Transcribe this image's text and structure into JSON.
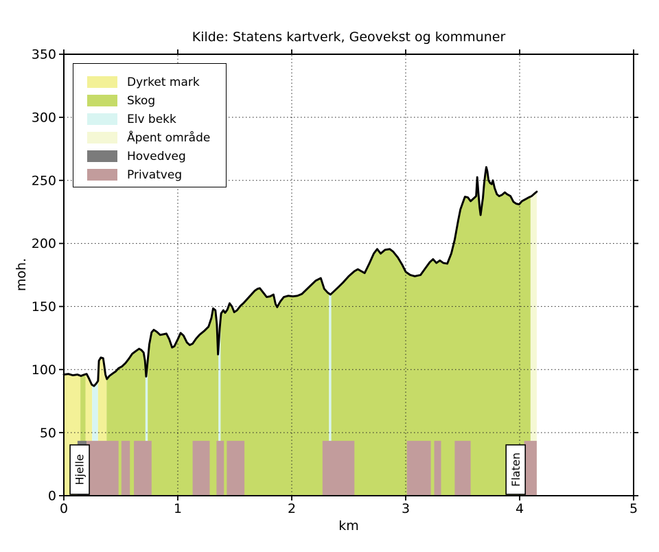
{
  "title": "Kilde: Statens kartverk, Geovekst og kommuner",
  "axes": {
    "x_label": "km",
    "y_label": "moh.",
    "x_ticks": [
      0,
      1,
      2,
      3,
      4,
      5
    ],
    "y_ticks": [
      0,
      50,
      100,
      150,
      200,
      250,
      300,
      350
    ]
  },
  "legend": {
    "items": [
      {
        "label": "Dyrket mark",
        "type": "dyrket_mark"
      },
      {
        "label": "Skog",
        "type": "skog"
      },
      {
        "label": "Elv bekk",
        "type": "elv_bekk"
      },
      {
        "label": "Åpent område",
        "type": "apent_omrade"
      },
      {
        "label": "Hovedveg",
        "type": "hovedveg"
      },
      {
        "label": "Privatveg",
        "type": "privatveg"
      }
    ]
  },
  "markers": [
    {
      "label": "Hjelle",
      "km": 0.139
    },
    {
      "label": "Flaten",
      "km": 3.965
    }
  ],
  "chart_data": {
    "type": "area",
    "title": "Kilde: Statens kartverk, Geovekst og kommuner",
    "xlabel": "km",
    "ylabel": "moh.",
    "xlim": [
      0,
      5
    ],
    "ylim": [
      0,
      350
    ],
    "grid": true,
    "legend_position": "upper left",
    "line_color": "#000000",
    "colors": {
      "dyrket_mark": "#f3f197",
      "skog": "#c6db68",
      "elv_bekk": "#d8f5f2",
      "apent_omrade": "#f5f8d5",
      "hovedveg": "#7b7b7b",
      "privatveg": "#c29c9c"
    },
    "profile": [
      [
        0.0,
        96
      ],
      [
        0.04,
        96.5
      ],
      [
        0.08,
        95.5
      ],
      [
        0.12,
        96
      ],
      [
        0.15,
        95
      ],
      [
        0.18,
        96
      ],
      [
        0.2,
        96.5
      ],
      [
        0.22,
        93
      ],
      [
        0.245,
        88
      ],
      [
        0.265,
        87
      ],
      [
        0.285,
        89
      ],
      [
        0.3,
        91
      ],
      [
        0.308,
        107
      ],
      [
        0.325,
        109.5
      ],
      [
        0.345,
        109
      ],
      [
        0.355,
        103
      ],
      [
        0.365,
        96
      ],
      [
        0.378,
        92.5
      ],
      [
        0.4,
        95
      ],
      [
        0.43,
        97
      ],
      [
        0.455,
        98.5
      ],
      [
        0.48,
        101
      ],
      [
        0.51,
        102.5
      ],
      [
        0.54,
        105
      ],
      [
        0.57,
        108.5
      ],
      [
        0.6,
        112.5
      ],
      [
        0.63,
        114.5
      ],
      [
        0.66,
        116.5
      ],
      [
        0.68,
        115.5
      ],
      [
        0.7,
        113.5
      ],
      [
        0.712,
        107
      ],
      [
        0.722,
        94.5
      ],
      [
        0.735,
        106
      ],
      [
        0.75,
        120
      ],
      [
        0.77,
        129.5
      ],
      [
        0.79,
        131.5
      ],
      [
        0.815,
        130
      ],
      [
        0.845,
        127.5
      ],
      [
        0.875,
        128
      ],
      [
        0.9,
        128.5
      ],
      [
        0.925,
        124
      ],
      [
        0.95,
        117.5
      ],
      [
        0.97,
        118.5
      ],
      [
        1.0,
        124
      ],
      [
        1.025,
        129
      ],
      [
        1.05,
        127
      ],
      [
        1.08,
        121.5
      ],
      [
        1.105,
        119.5
      ],
      [
        1.13,
        120.5
      ],
      [
        1.16,
        124.5
      ],
      [
        1.19,
        127.5
      ],
      [
        1.23,
        130.5
      ],
      [
        1.27,
        134
      ],
      [
        1.295,
        141
      ],
      [
        1.31,
        148.5
      ],
      [
        1.33,
        147
      ],
      [
        1.343,
        136
      ],
      [
        1.353,
        112
      ],
      [
        1.368,
        133
      ],
      [
        1.38,
        144.5
      ],
      [
        1.4,
        147
      ],
      [
        1.415,
        145
      ],
      [
        1.435,
        147.5
      ],
      [
        1.455,
        152.5
      ],
      [
        1.475,
        150
      ],
      [
        1.495,
        145.5
      ],
      [
        1.52,
        147
      ],
      [
        1.55,
        150.5
      ],
      [
        1.58,
        153
      ],
      [
        1.61,
        156
      ],
      [
        1.645,
        159.5
      ],
      [
        1.675,
        162.5
      ],
      [
        1.7,
        164
      ],
      [
        1.72,
        164.5
      ],
      [
        1.75,
        161
      ],
      [
        1.78,
        157.5
      ],
      [
        1.81,
        158
      ],
      [
        1.84,
        159.5
      ],
      [
        1.858,
        152
      ],
      [
        1.872,
        149.5
      ],
      [
        1.9,
        154
      ],
      [
        1.93,
        157.5
      ],
      [
        1.97,
        158.5
      ],
      [
        2.01,
        158
      ],
      [
        2.05,
        158.5
      ],
      [
        2.09,
        160
      ],
      [
        2.13,
        163.5
      ],
      [
        2.17,
        167
      ],
      [
        2.21,
        170.5
      ],
      [
        2.255,
        172.5
      ],
      [
        2.285,
        164
      ],
      [
        2.315,
        161
      ],
      [
        2.34,
        159.5
      ],
      [
        2.375,
        162.5
      ],
      [
        2.41,
        165.5
      ],
      [
        2.45,
        169
      ],
      [
        2.5,
        174
      ],
      [
        2.55,
        178
      ],
      [
        2.58,
        179.5
      ],
      [
        2.61,
        178
      ],
      [
        2.64,
        176.5
      ],
      [
        2.68,
        184
      ],
      [
        2.72,
        192
      ],
      [
        2.75,
        195.5
      ],
      [
        2.78,
        192
      ],
      [
        2.82,
        195
      ],
      [
        2.86,
        195.5
      ],
      [
        2.89,
        193.5
      ],
      [
        2.93,
        189
      ],
      [
        2.97,
        183
      ],
      [
        3.0,
        177.5
      ],
      [
        3.04,
        175
      ],
      [
        3.08,
        174
      ],
      [
        3.13,
        175
      ],
      [
        3.17,
        180
      ],
      [
        3.21,
        185
      ],
      [
        3.24,
        187.5
      ],
      [
        3.27,
        184.5
      ],
      [
        3.3,
        186.5
      ],
      [
        3.33,
        184.5
      ],
      [
        3.365,
        184
      ],
      [
        3.4,
        192
      ],
      [
        3.43,
        203
      ],
      [
        3.46,
        218
      ],
      [
        3.48,
        227
      ],
      [
        3.5,
        232
      ],
      [
        3.52,
        237
      ],
      [
        3.545,
        236.5
      ],
      [
        3.57,
        233.5
      ],
      [
        3.6,
        236
      ],
      [
        3.618,
        237.5
      ],
      [
        3.628,
        252.5
      ],
      [
        3.638,
        240
      ],
      [
        3.648,
        229
      ],
      [
        3.657,
        222.5
      ],
      [
        3.668,
        230
      ],
      [
        3.678,
        236
      ],
      [
        3.688,
        247
      ],
      [
        3.698,
        255
      ],
      [
        3.707,
        260.5
      ],
      [
        3.717,
        257
      ],
      [
        3.727,
        250
      ],
      [
        3.74,
        248
      ],
      [
        3.755,
        247
      ],
      [
        3.765,
        250
      ],
      [
        3.78,
        244
      ],
      [
        3.8,
        239
      ],
      [
        3.82,
        237.5
      ],
      [
        3.845,
        238.5
      ],
      [
        3.87,
        240.5
      ],
      [
        3.89,
        239
      ],
      [
        3.92,
        237.5
      ],
      [
        3.945,
        233
      ],
      [
        3.97,
        231.5
      ],
      [
        3.995,
        231
      ],
      [
        4.02,
        233.5
      ],
      [
        4.05,
        235
      ],
      [
        4.08,
        236.5
      ],
      [
        4.105,
        237.5
      ],
      [
        4.13,
        239.5
      ],
      [
        4.15,
        241
      ]
    ],
    "terrain_segments": [
      {
        "from": 0.0,
        "to": 0.145,
        "type": "dyrket_mark"
      },
      {
        "from": 0.145,
        "to": 0.19,
        "type": "skog"
      },
      {
        "from": 0.19,
        "to": 0.248,
        "type": "dyrket_mark"
      },
      {
        "from": 0.248,
        "to": 0.3,
        "type": "elv_bekk"
      },
      {
        "from": 0.3,
        "to": 0.375,
        "type": "dyrket_mark"
      },
      {
        "from": 0.375,
        "to": 0.716,
        "type": "skog"
      },
      {
        "from": 0.716,
        "to": 0.736,
        "type": "elv_bekk"
      },
      {
        "from": 0.736,
        "to": 1.357,
        "type": "skog"
      },
      {
        "from": 1.357,
        "to": 1.376,
        "type": "elv_bekk"
      },
      {
        "from": 1.376,
        "to": 2.327,
        "type": "skog"
      },
      {
        "from": 2.327,
        "to": 2.347,
        "type": "elv_bekk"
      },
      {
        "from": 2.347,
        "to": 4.096,
        "type": "skog"
      },
      {
        "from": 4.096,
        "to": 4.15,
        "type": "apent_omrade"
      }
    ],
    "road_height_m": 43.5,
    "roads": [
      {
        "from": 0.12,
        "to": 0.2,
        "type": "hovedveg"
      },
      {
        "from": 0.2,
        "to": 0.48,
        "type": "privatveg"
      },
      {
        "from": 0.505,
        "to": 0.58,
        "type": "privatveg"
      },
      {
        "from": 0.615,
        "to": 0.77,
        "type": "privatveg"
      },
      {
        "from": 1.13,
        "to": 1.28,
        "type": "privatveg"
      },
      {
        "from": 1.34,
        "to": 1.405,
        "type": "privatveg"
      },
      {
        "from": 1.43,
        "to": 1.585,
        "type": "privatveg"
      },
      {
        "from": 2.27,
        "to": 2.55,
        "type": "privatveg"
      },
      {
        "from": 3.01,
        "to": 3.22,
        "type": "privatveg"
      },
      {
        "from": 3.25,
        "to": 3.31,
        "type": "privatveg"
      },
      {
        "from": 3.43,
        "to": 3.57,
        "type": "privatveg"
      },
      {
        "from": 4.04,
        "to": 4.15,
        "type": "privatveg"
      }
    ]
  }
}
